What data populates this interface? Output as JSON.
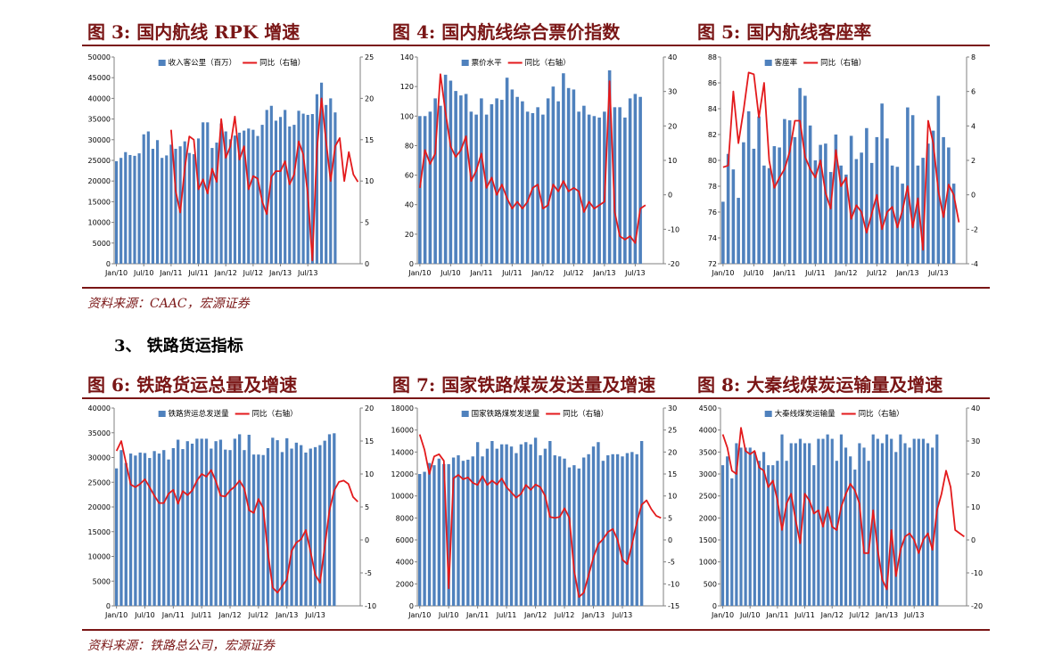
{
  "row1": {
    "titles": [
      "图 3:  国内航线 RPK 增速",
      "图 4:  国内航线综合票价指数",
      "图 5:  国内航线客座率"
    ],
    "source": "资料来源：CAAC，宏源证券"
  },
  "section_heading": "3、 铁路货运指标",
  "row2": {
    "titles": [
      "图 6:  铁路货运总量及增速",
      "图 7:  国家铁路煤炭发送量及增速",
      "图 8:  大秦线煤炭运输量及增速"
    ],
    "source": "资料来源：铁路总公司，宏源证券"
  },
  "colors": {
    "bar": "#4f81bd",
    "line": "#e31a1c",
    "accent": "#7a1616"
  },
  "x_tick_labels": [
    "Jan/10",
    "Jul/10",
    "Jan/11",
    "Jul/11",
    "Jan/12",
    "Jul/12",
    "Jan/13",
    "Jul/13"
  ],
  "chart_data": [
    {
      "type": "bar",
      "legend": [
        "收入客公里（百万）",
        "同比（右轴）"
      ],
      "ylim": [
        0,
        50000
      ],
      "yticks": [
        0,
        5000,
        10000,
        15000,
        20000,
        25000,
        30000,
        35000,
        40000,
        45000,
        50000
      ],
      "y2lim": [
        0,
        25
      ],
      "y2ticks": [
        0,
        5,
        10,
        15,
        20,
        25
      ],
      "line_start": 12,
      "bars": [
        24800,
        25600,
        27000,
        26300,
        26100,
        26700,
        31300,
        32000,
        27800,
        29900,
        25600,
        26200,
        28800,
        27800,
        28400,
        29600,
        26800,
        26500,
        30300,
        34200,
        34200,
        28000,
        29300,
        33900,
        32000,
        30100,
        31000,
        31700,
        32200,
        32700,
        32400,
        30900,
        33600,
        37200,
        38200,
        34600,
        35500,
        37200,
        33200,
        33600,
        37000,
        36300,
        36000,
        36200,
        41000,
        43800,
        38400,
        40000,
        36600
      ],
      "line": [
        16.2,
        8.8,
        6.2,
        11.5,
        15.4,
        15.0,
        9.0,
        10.2,
        8.5,
        11.5,
        9.9,
        17.5,
        12.8,
        14.2,
        17.8,
        12.6,
        14.2,
        9.0,
        10.6,
        10.3,
        7.5,
        6.0,
        10.5,
        11.2,
        11.2,
        12.4,
        9.6,
        10.8,
        14.8,
        13.2,
        8.4,
        0.4,
        13.8,
        20.0,
        14.8,
        10.0,
        14.2,
        15.2,
        10.0,
        13.5,
        10.8,
        9.9
      ]
    },
    {
      "type": "bar",
      "legend": [
        "票价水平",
        "同比（右轴）"
      ],
      "ylim": [
        0,
        140
      ],
      "yticks": [
        0,
        20,
        40,
        60,
        80,
        100,
        120,
        140
      ],
      "y2lim": [
        -20,
        40
      ],
      "y2ticks": [
        -20,
        -10,
        0,
        10,
        20,
        30,
        40
      ],
      "line_start": 0,
      "bars": [
        100,
        100,
        103,
        112,
        107,
        128,
        124,
        117,
        114,
        115,
        103,
        101,
        112,
        101,
        108,
        112,
        111,
        126,
        118,
        113,
        110,
        103,
        102,
        106,
        101,
        112,
        120,
        110,
        129,
        119,
        118,
        103,
        107,
        101,
        100,
        99,
        103,
        131,
        106,
        106,
        99,
        112,
        115,
        113
      ],
      "line": [
        2,
        13,
        9,
        12,
        35,
        24,
        14,
        11,
        13,
        17,
        4,
        7,
        12,
        2,
        5,
        0,
        3,
        -1,
        -4,
        -2,
        -4,
        -2,
        2,
        3,
        -4,
        -3,
        3,
        1,
        4,
        1,
        2,
        1,
        -5,
        -2,
        -4,
        -3,
        -2,
        33,
        -5,
        -12,
        -13,
        -12,
        -14,
        -4,
        -3
      ]
    },
    {
      "type": "bar",
      "legend": [
        "客座率",
        "同比（右轴）"
      ],
      "ylim": [
        72,
        88
      ],
      "yticks": [
        72,
        74,
        76,
        78,
        80,
        82,
        84,
        86,
        88
      ],
      "y2lim": [
        -4,
        8
      ],
      "y2ticks": [
        -4,
        -2,
        0,
        2,
        4,
        6,
        8
      ],
      "line_start": 0,
      "bars": [
        76.8,
        80.5,
        79.3,
        77.1,
        81.4,
        83.8,
        80.9,
        83.4,
        79.6,
        79.4,
        81.1,
        81.0,
        83.2,
        83.1,
        81.8,
        85.6,
        85.0,
        82.7,
        80.0,
        81.2,
        81.3,
        79.1,
        82.0,
        79.6,
        78.9,
        81.9,
        80.1,
        80.6,
        82.5,
        79.8,
        81.8,
        84.4,
        81.7,
        79.6,
        79.5,
        78.2,
        84.1,
        83.5,
        79.6,
        80.2,
        81.3,
        82.3,
        85.0,
        81.8,
        81.0,
        78.2
      ],
      "line": [
        1.6,
        1.7,
        6.0,
        3.0,
        4.9,
        7.1,
        7.0,
        4.5,
        6.5,
        2.0,
        0.4,
        1.0,
        1.5,
        2.5,
        4.3,
        4.3,
        2.2,
        1.5,
        1.0,
        2.0,
        0.1,
        -0.8,
        2.6,
        0.5,
        1.0,
        -1.4,
        -0.6,
        -1.0,
        -2.2,
        -1.1,
        0.0,
        -2.0,
        -1.0,
        -0.7,
        -1.9,
        -0.9,
        0.5,
        -1.9,
        -0.2,
        -3.2,
        4.3,
        3.0,
        0.2,
        -1.3,
        0.6,
        0.0,
        -1.6
      ]
    },
    {
      "type": "bar",
      "legend": [
        "铁路货运总发送量",
        "同比（右轴）"
      ],
      "ylim": [
        0,
        40000
      ],
      "yticks": [
        0,
        5000,
        10000,
        15000,
        20000,
        25000,
        30000,
        35000,
        40000
      ],
      "y2lim": [
        -10,
        20
      ],
      "y2ticks": [
        -10,
        -5,
        0,
        5,
        10,
        15,
        20
      ],
      "line_start": 0,
      "bars": [
        27800,
        31500,
        28900,
        30800,
        30400,
        31000,
        30900,
        29900,
        31300,
        30800,
        31500,
        29600,
        31900,
        33600,
        31700,
        33300,
        32800,
        33800,
        33800,
        33800,
        31800,
        33300,
        33600,
        31600,
        31500,
        33800,
        34700,
        31500,
        34600,
        30600,
        30600,
        30500,
        31900,
        34000,
        33500,
        31100,
        33900,
        31800,
        33000,
        32500,
        31000,
        31800,
        32100,
        32500,
        33400,
        34700,
        34900
      ],
      "line": [
        13.5,
        15.0,
        11.7,
        8.4,
        8.0,
        8.5,
        9.2,
        8.0,
        6.7,
        5.6,
        5.6,
        7.0,
        7.6,
        5.5,
        7.4,
        6.8,
        7.5,
        9.0,
        10.0,
        9.6,
        10.6,
        8.9,
        6.7,
        6.6,
        7.5,
        8.1,
        9.0,
        7.8,
        4.5,
        4.1,
        6.2,
        4.8,
        -2.0,
        -7.2,
        -8.0,
        -7.0,
        -6.0,
        -1.7,
        -0.4,
        0.1,
        1.5,
        -1.8,
        -5.3,
        -6.5,
        -1.0,
        4.5,
        7.5,
        8.8,
        9.0,
        8.5,
        6.5,
        5.8
      ]
    },
    {
      "type": "bar",
      "legend": [
        "国家铁路煤炭发送量",
        "同比（右轴）"
      ],
      "ylim": [
        0,
        18000
      ],
      "yticks": [
        0,
        2000,
        4000,
        6000,
        8000,
        10000,
        12000,
        14000,
        16000,
        18000
      ],
      "y2lim": [
        -15,
        30
      ],
      "y2ticks": [
        -15,
        -10,
        -5,
        0,
        5,
        10,
        15,
        20,
        25,
        30
      ],
      "line_start": 0,
      "bars": [
        12000,
        12200,
        13000,
        12800,
        13400,
        12900,
        12900,
        13500,
        13700,
        13200,
        13300,
        13600,
        14900,
        13600,
        14300,
        15000,
        14300,
        14700,
        14700,
        14500,
        13900,
        14700,
        14900,
        14700,
        15300,
        13700,
        14300,
        15000,
        13700,
        13600,
        13400,
        12600,
        12800,
        12500,
        13500,
        13800,
        14500,
        14900,
        13200,
        13700,
        13800,
        13800,
        13600,
        13900,
        14000,
        13800,
        15000
      ],
      "line": [
        24,
        20.5,
        15,
        19.0,
        19.5,
        18,
        -11,
        14,
        14.8,
        13.8,
        14.2,
        13.0,
        12.5,
        14.5,
        12.5,
        13.5,
        12.6,
        14.0,
        12.0,
        10.8,
        9.6,
        10.5,
        12.5,
        11.4,
        12.6,
        12.0,
        10.0,
        5.2,
        5.0,
        5.2,
        7.2,
        5.0,
        -7.0,
        -13.0,
        -12.0,
        -8.0,
        -4.0,
        -1.0,
        0.2,
        1.8,
        2.5,
        0.0,
        -4.5,
        -5.5,
        -1.0,
        4.0,
        8.0,
        9.0,
        7.0,
        5.5,
        5.0
      ]
    },
    {
      "type": "bar",
      "legend": [
        "大秦线煤炭运输量",
        "同比（右轴）"
      ],
      "ylim": [
        0,
        4500
      ],
      "yticks": [
        0,
        500,
        1000,
        1500,
        2000,
        2500,
        3000,
        3500,
        4000,
        4500
      ],
      "y2lim": [
        -20,
        40
      ],
      "y2ticks": [
        -20,
        -10,
        0,
        10,
        20,
        30,
        40
      ],
      "line_start": 0,
      "bars": [
        3200,
        3400,
        2900,
        3700,
        3600,
        3600,
        3600,
        3500,
        3300,
        3500,
        3200,
        3200,
        3300,
        3900,
        3300,
        3700,
        3700,
        3800,
        3700,
        3700,
        3200,
        3800,
        3800,
        3900,
        3800,
        3300,
        3900,
        3600,
        3400,
        3100,
        3700,
        3600,
        3300,
        3900,
        3800,
        3700,
        3900,
        3800,
        3500,
        3900,
        3700,
        3600,
        3800,
        3800,
        3800,
        3700,
        3600,
        3900
      ],
      "line": [
        32,
        28,
        21,
        20,
        34,
        27,
        26,
        27,
        22,
        21,
        16,
        18,
        12,
        3,
        11,
        14,
        6,
        -1,
        14,
        12,
        8,
        9,
        4,
        10,
        4,
        3,
        10,
        14,
        17,
        15,
        11,
        -4,
        -4,
        9,
        -3,
        -12,
        -15,
        3,
        -11,
        -3,
        1,
        2,
        0,
        -4,
        0,
        2,
        -3,
        9,
        14,
        21,
        16,
        3,
        2,
        1
      ]
    }
  ]
}
